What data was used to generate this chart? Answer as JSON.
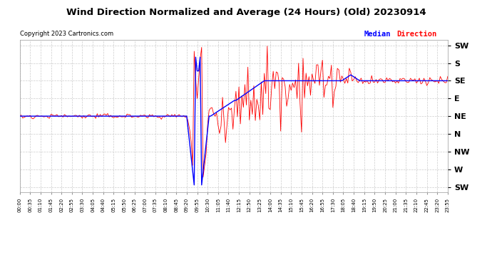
{
  "title": "Wind Direction Normalized and Average (24 Hours) (Old) 20230914",
  "copyright": "Copyright 2023 Cartronics.com",
  "legend_median": "Median",
  "legend_direction": "Direction",
  "y_direction_labels": [
    "SW",
    "S",
    "SE",
    "E",
    "NE",
    "N",
    "NW",
    "W",
    "SW"
  ],
  "background_color": "#ffffff",
  "grid_color": "#cccccc",
  "red_color": "#ff0000",
  "blue_color": "#0000ff",
  "xtick_labels": [
    "00:00",
    "00:35",
    "01:10",
    "01:45",
    "02:20",
    "02:55",
    "03:30",
    "04:05",
    "04:40",
    "05:15",
    "05:50",
    "06:25",
    "07:00",
    "07:35",
    "08:10",
    "08:45",
    "09:20",
    "09:55",
    "10:30",
    "11:05",
    "11:40",
    "12:15",
    "12:50",
    "13:25",
    "14:00",
    "14:35",
    "15:10",
    "15:45",
    "16:20",
    "16:55",
    "17:30",
    "18:05",
    "18:40",
    "19:15",
    "19:50",
    "20:25",
    "21:00",
    "21:35",
    "22:10",
    "22:45",
    "23:20",
    "23:55"
  ]
}
